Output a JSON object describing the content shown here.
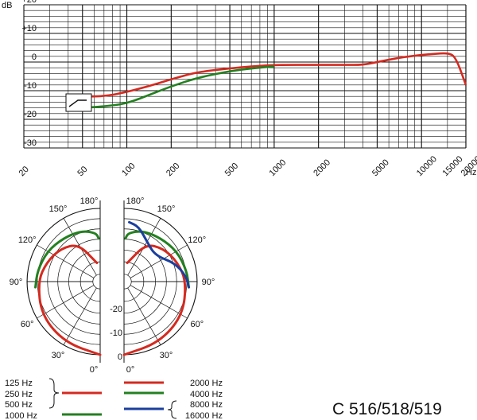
{
  "chart_data": [
    {
      "type": "line",
      "title": "",
      "ylabel": "dB",
      "xlabel": "Hz",
      "x_scale": "log",
      "xlim": [
        20,
        20000
      ],
      "ylim": [
        -30,
        20
      ],
      "y_ticks": [
        "+20",
        "+10",
        "0",
        "-10",
        "-20",
        "-30"
      ],
      "x_ticks": [
        "20",
        "50",
        "100",
        "200",
        "500",
        "1000",
        "2000",
        "5000",
        "10000",
        "15000",
        "20000"
      ],
      "grid": true,
      "annotation": "low-cut filter symbol",
      "series": [
        {
          "color": "#d42a20",
          "x": [
            50,
            70,
            100,
            150,
            200,
            300,
            500,
            700,
            1000,
            2000,
            3000,
            4000,
            5000,
            7000,
            10000,
            12000,
            15000,
            17000,
            20000
          ],
          "y": [
            -12,
            -12,
            -10.5,
            -8,
            -6,
            -3.5,
            -2.2,
            -1.5,
            -1,
            -1,
            -1,
            -1,
            0,
            1.5,
            2.5,
            2.8,
            3.2,
            2,
            -8
          ]
        },
        {
          "color": "#238020",
          "x": [
            50,
            70,
            100,
            150,
            200,
            300,
            500,
            700,
            1000
          ],
          "y": [
            -16,
            -15.5,
            -14.5,
            -11,
            -8.5,
            -5.5,
            -3.2,
            -2.2,
            -1.5
          ]
        }
      ]
    },
    {
      "type": "polar",
      "angle_labels": [
        "180°",
        "150°",
        "120°",
        "90°",
        "60°",
        "30°",
        "0°"
      ],
      "r_labels": [
        "-20",
        "-10",
        "0"
      ],
      "series": [
        {
          "side": "left",
          "color": "#d42a20",
          "theta": [
            0,
            30,
            60,
            90,
            110,
            130,
            150,
            170
          ],
          "level": [
            0,
            -1,
            -2,
            -4,
            -6,
            -8,
            -11,
            -20
          ]
        },
        {
          "side": "left",
          "color": "#238020",
          "theta": [
            85,
            100,
            120,
            140,
            160,
            175,
            178
          ],
          "level": [
            -3,
            -3.5,
            -4.5,
            -6,
            -7,
            -9,
            -11
          ]
        },
        {
          "side": "right",
          "color": "#d42a20",
          "theta": [
            0,
            30,
            60,
            90,
            110,
            130,
            150,
            170
          ],
          "level": [
            0,
            -1,
            -2,
            -4,
            -6,
            -8,
            -11,
            -20
          ]
        },
        {
          "side": "right",
          "color": "#238020",
          "theta": [
            85,
            100,
            120,
            140,
            160,
            175,
            178
          ],
          "level": [
            -3,
            -3.5,
            -4.5,
            -6,
            -7,
            -9,
            -11
          ]
        },
        {
          "side": "right",
          "color": "#1b3f9e",
          "theta": [
            85,
            95,
            110,
            130,
            150,
            165,
            175
          ],
          "level": [
            -3,
            -4,
            -7,
            -12,
            -10,
            -6,
            -5
          ]
        }
      ]
    }
  ],
  "legend": {
    "left_labels": [
      "125 Hz",
      "250 Hz",
      "500 Hz",
      "1000 Hz"
    ],
    "right_labels": [
      "2000 Hz",
      "4000 Hz",
      "8000 Hz",
      "16000 Hz"
    ],
    "colors": {
      "red": "#d42a20",
      "green": "#238020",
      "blue": "#1b3f9e"
    }
  },
  "model": "C 516/518/519"
}
